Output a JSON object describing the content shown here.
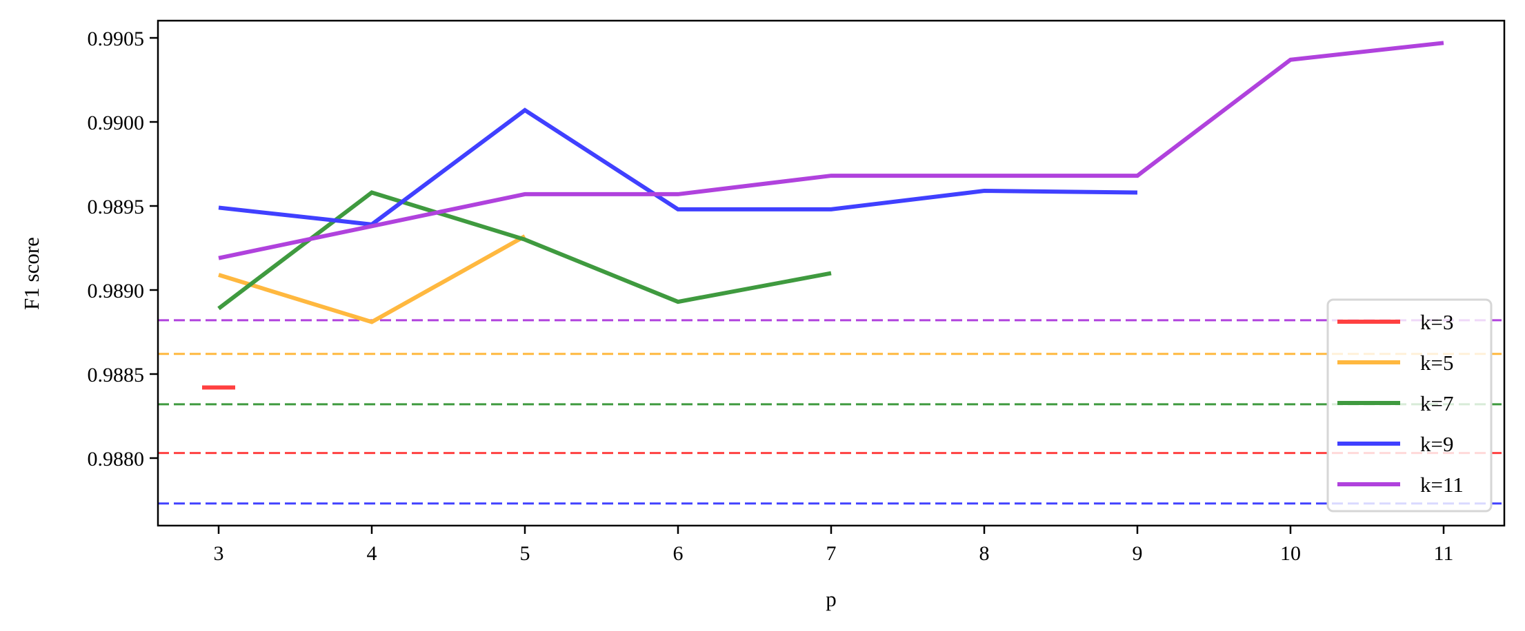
{
  "chart_data": {
    "type": "line",
    "title": "",
    "xlabel": "p",
    "ylabel": "F1 score",
    "xlim": [
      2.6,
      11.4
    ],
    "ylim": [
      0.98759,
      0.9906
    ],
    "grid": false,
    "legend_position": "bottom-right",
    "x_ticks": [
      3,
      4,
      5,
      6,
      7,
      8,
      9,
      10,
      11
    ],
    "x_tick_labels": [
      "3",
      "4",
      "5",
      "6",
      "7",
      "8",
      "9",
      "10",
      "11"
    ],
    "y_ticks": [
      0.988,
      0.9885,
      0.989,
      0.9895,
      0.99,
      0.9905
    ],
    "y_tick_labels": [
      "0.9880",
      "0.9885",
      "0.9890",
      "0.9895",
      "0.9900",
      "0.9905"
    ],
    "series": [
      {
        "name": "k=3",
        "color": "#ff4040",
        "x": [
          3
        ],
        "values": [
          0.98842
        ],
        "baseline": 0.98803
      },
      {
        "name": "k=5",
        "color": "#ffb83f",
        "x": [
          3,
          4,
          5
        ],
        "values": [
          0.98909,
          0.98881,
          0.98932
        ],
        "baseline": 0.98862
      },
      {
        "name": "k=7",
        "color": "#3f9a3f",
        "x": [
          3,
          4,
          5,
          6,
          7
        ],
        "values": [
          0.98889,
          0.98958,
          0.9893,
          0.98893,
          0.9891
        ],
        "baseline": 0.98832
      },
      {
        "name": "k=9",
        "color": "#4040ff",
        "x": [
          3,
          4,
          5,
          6,
          7,
          8,
          9
        ],
        "values": [
          0.98949,
          0.98939,
          0.99007,
          0.98948,
          0.98948,
          0.98959,
          0.98958
        ],
        "baseline": 0.98773
      },
      {
        "name": "k=11",
        "color": "#b042dd",
        "x": [
          3,
          4,
          5,
          6,
          7,
          8,
          9,
          10,
          11
        ],
        "values": [
          0.98919,
          0.98938,
          0.98957,
          0.98957,
          0.98968,
          0.98968,
          0.98968,
          0.99037,
          0.99047
        ],
        "baseline": 0.98882
      }
    ]
  }
}
